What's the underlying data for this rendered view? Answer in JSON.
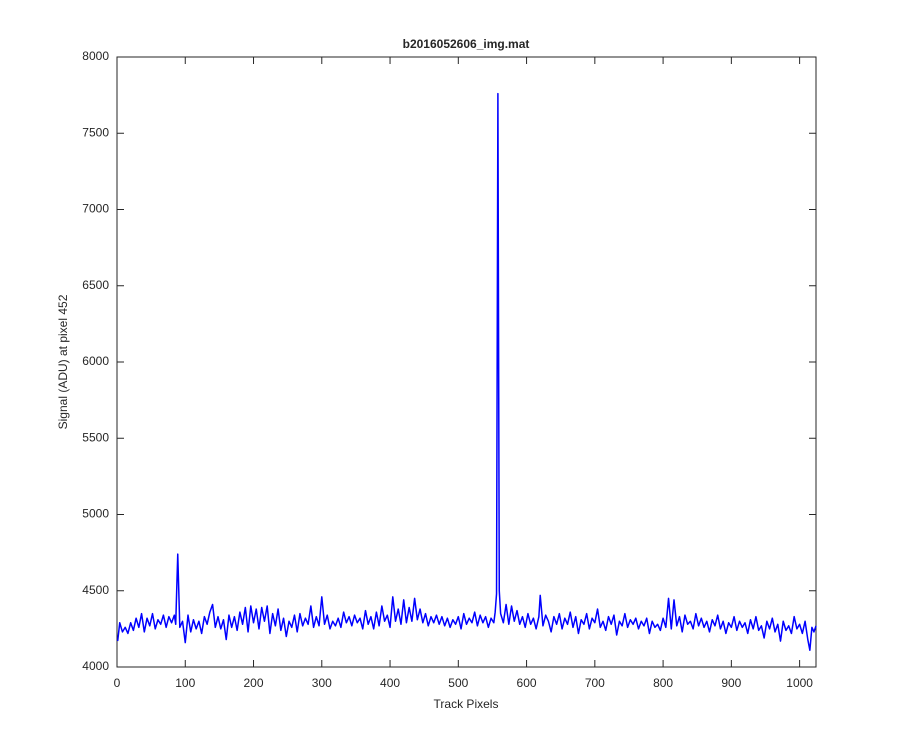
{
  "chart_data": {
    "type": "line",
    "title": "b2016052606_img.mat",
    "x_label": "Track Pixels",
    "y_label": "Signal (ADU) at pixel 452",
    "xlim": [
      0,
      1024
    ],
    "ylim": [
      4000,
      8000
    ],
    "xticks": [
      0,
      100,
      200,
      300,
      400,
      500,
      600,
      700,
      800,
      900,
      1000
    ],
    "yticks": [
      4000,
      4500,
      5000,
      5500,
      6000,
      6500,
      7000,
      7500,
      8000
    ],
    "grid": false,
    "series": [
      {
        "color": "#0000ff",
        "x": [
          1,
          4,
          8,
          12,
          16,
          20,
          24,
          28,
          32,
          36,
          40,
          44,
          48,
          52,
          56,
          60,
          64,
          68,
          72,
          76,
          80,
          84,
          86,
          89,
          92,
          96,
          100,
          104,
          108,
          112,
          116,
          120,
          124,
          128,
          132,
          136,
          140,
          144,
          148,
          152,
          156,
          160,
          164,
          168,
          172,
          176,
          180,
          184,
          188,
          192,
          196,
          200,
          204,
          208,
          212,
          216,
          220,
          224,
          228,
          232,
          236,
          240,
          244,
          248,
          252,
          256,
          260,
          264,
          268,
          272,
          276,
          280,
          284,
          288,
          292,
          296,
          300,
          304,
          308,
          312,
          316,
          320,
          324,
          328,
          332,
          336,
          340,
          344,
          348,
          352,
          356,
          360,
          364,
          368,
          372,
          376,
          380,
          384,
          388,
          392,
          396,
          400,
          404,
          408,
          412,
          416,
          420,
          424,
          428,
          432,
          436,
          440,
          444,
          448,
          452,
          456,
          460,
          464,
          468,
          472,
          476,
          480,
          484,
          488,
          492,
          496,
          500,
          504,
          508,
          512,
          516,
          520,
          524,
          528,
          532,
          536,
          540,
          544,
          548,
          552,
          554,
          556,
          558,
          560,
          562,
          566,
          570,
          574,
          578,
          582,
          586,
          590,
          594,
          598,
          602,
          606,
          610,
          614,
          618,
          620,
          624,
          628,
          632,
          636,
          640,
          644,
          648,
          652,
          656,
          660,
          664,
          668,
          672,
          676,
          680,
          684,
          688,
          692,
          696,
          700,
          704,
          708,
          712,
          716,
          720,
          724,
          728,
          732,
          736,
          740,
          744,
          748,
          752,
          756,
          760,
          764,
          768,
          772,
          776,
          780,
          784,
          788,
          792,
          796,
          800,
          804,
          808,
          812,
          816,
          820,
          824,
          828,
          832,
          836,
          840,
          844,
          848,
          852,
          856,
          860,
          864,
          868,
          872,
          876,
          880,
          884,
          888,
          892,
          896,
          900,
          904,
          908,
          912,
          916,
          920,
          924,
          928,
          932,
          936,
          940,
          944,
          948,
          952,
          956,
          960,
          964,
          968,
          972,
          976,
          980,
          984,
          988,
          992,
          996,
          1000,
          1004,
          1008,
          1012,
          1015,
          1018,
          1021,
          1024
        ],
        "values": [
          4170,
          4290,
          4230,
          4260,
          4220,
          4290,
          4240,
          4320,
          4260,
          4350,
          4230,
          4320,
          4270,
          4350,
          4250,
          4310,
          4280,
          4340,
          4260,
          4330,
          4290,
          4340,
          4280,
          4740,
          4260,
          4300,
          4160,
          4340,
          4230,
          4310,
          4250,
          4300,
          4220,
          4330,
          4280,
          4360,
          4410,
          4260,
          4330,
          4250,
          4310,
          4180,
          4340,
          4260,
          4330,
          4240,
          4360,
          4280,
          4390,
          4230,
          4400,
          4290,
          4380,
          4250,
          4390,
          4300,
          4400,
          4220,
          4350,
          4270,
          4380,
          4240,
          4320,
          4200,
          4300,
          4260,
          4340,
          4230,
          4350,
          4270,
          4320,
          4280,
          4400,
          4260,
          4330,
          4270,
          4460,
          4280,
          4340,
          4250,
          4300,
          4270,
          4320,
          4260,
          4360,
          4290,
          4330,
          4270,
          4340,
          4290,
          4320,
          4250,
          4370,
          4280,
          4330,
          4250,
          4360,
          4270,
          4400,
          4300,
          4340,
          4260,
          4460,
          4300,
          4380,
          4280,
          4440,
          4290,
          4390,
          4300,
          4450,
          4310,
          4380,
          4290,
          4350,
          4270,
          4330,
          4290,
          4340,
          4280,
          4330,
          4270,
          4320,
          4260,
          4310,
          4280,
          4330,
          4250,
          4350,
          4280,
          4320,
          4290,
          4360,
          4270,
          4340,
          4290,
          4330,
          4260,
          4320,
          4290,
          4360,
          4480,
          7760,
          4500,
          4350,
          4290,
          4410,
          4280,
          4400,
          4300,
          4370,
          4280,
          4330,
          4260,
          4350,
          4280,
          4320,
          4250,
          4330,
          4470,
          4270,
          4340,
          4300,
          4230,
          4330,
          4280,
          4350,
          4250,
          4320,
          4280,
          4360,
          4260,
          4330,
          4220,
          4310,
          4280,
          4350,
          4250,
          4320,
          4290,
          4380,
          4260,
          4300,
          4240,
          4330,
          4280,
          4340,
          4210,
          4300,
          4270,
          4350,
          4260,
          4310,
          4280,
          4320,
          4250,
          4300,
          4270,
          4320,
          4220,
          4300,
          4260,
          4280,
          4240,
          4320,
          4260,
          4450,
          4250,
          4440,
          4270,
          4330,
          4230,
          4340,
          4280,
          4300,
          4250,
          4350,
          4270,
          4320,
          4260,
          4300,
          4230,
          4310,
          4270,
          4340,
          4250,
          4300,
          4220,
          4290,
          4260,
          4330,
          4240,
          4300,
          4260,
          4290,
          4220,
          4310,
          4250,
          4330,
          4240,
          4270,
          4190,
          4300,
          4250,
          4320,
          4230,
          4280,
          4170,
          4300,
          4240,
          4270,
          4220,
          4330,
          4250,
          4280,
          4220,
          4300,
          4180,
          4110,
          4260,
          4230,
          4270
        ]
      }
    ]
  }
}
